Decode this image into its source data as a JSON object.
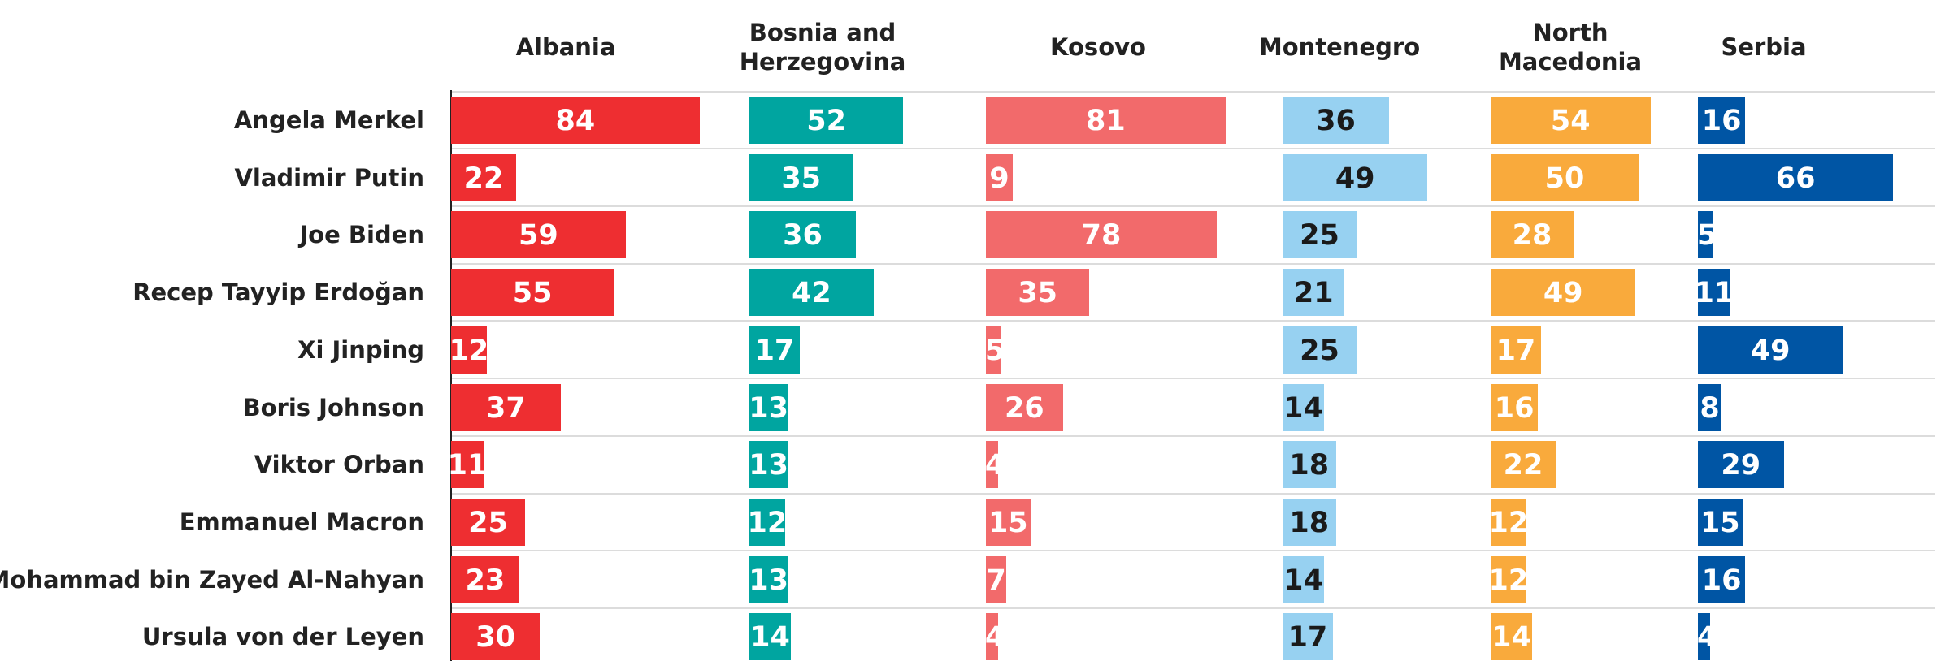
{
  "chart_data": {
    "type": "bar",
    "categories": [
      "Angela Merkel",
      "Vladimir Putin",
      "Joe Biden",
      "Recep Tayyip Erdoğan",
      "Xi Jinping",
      "Boris Johnson",
      "Viktor Orban",
      "Emmanuel Macron",
      "Mohammad bin Zayed Al-Nahyan",
      "Ursula von der Leyen"
    ],
    "series": [
      {
        "name": "Albania",
        "color": "#ee2e31",
        "label_color": "#ffffff",
        "values": [
          84,
          22,
          59,
          55,
          12,
          37,
          11,
          25,
          23,
          30
        ]
      },
      {
        "name": "Bosnia and Herzegovina",
        "color": "#00a5a0",
        "label_color": "#ffffff",
        "values": [
          52,
          35,
          36,
          42,
          17,
          13,
          13,
          12,
          13,
          14
        ]
      },
      {
        "name": "Kosovo",
        "color": "#f26a6b",
        "label_color": "#ffffff",
        "values": [
          81,
          9,
          78,
          35,
          5,
          26,
          4,
          15,
          7,
          4
        ]
      },
      {
        "name": "Montenegro",
        "color": "#97d1f1",
        "label_color": "#1a1a1a",
        "values": [
          36,
          49,
          25,
          21,
          25,
          14,
          18,
          18,
          14,
          17
        ]
      },
      {
        "name": "North Macedonia",
        "color": "#f9aa3c",
        "label_color": "#ffffff",
        "values": [
          54,
          50,
          28,
          49,
          17,
          16,
          22,
          12,
          12,
          14
        ]
      },
      {
        "name": "Serbia",
        "color": "#0055a4",
        "label_color": "#ffffff",
        "values": [
          16,
          66,
          5,
          11,
          49,
          8,
          29,
          15,
          16,
          4
        ]
      }
    ]
  }
}
